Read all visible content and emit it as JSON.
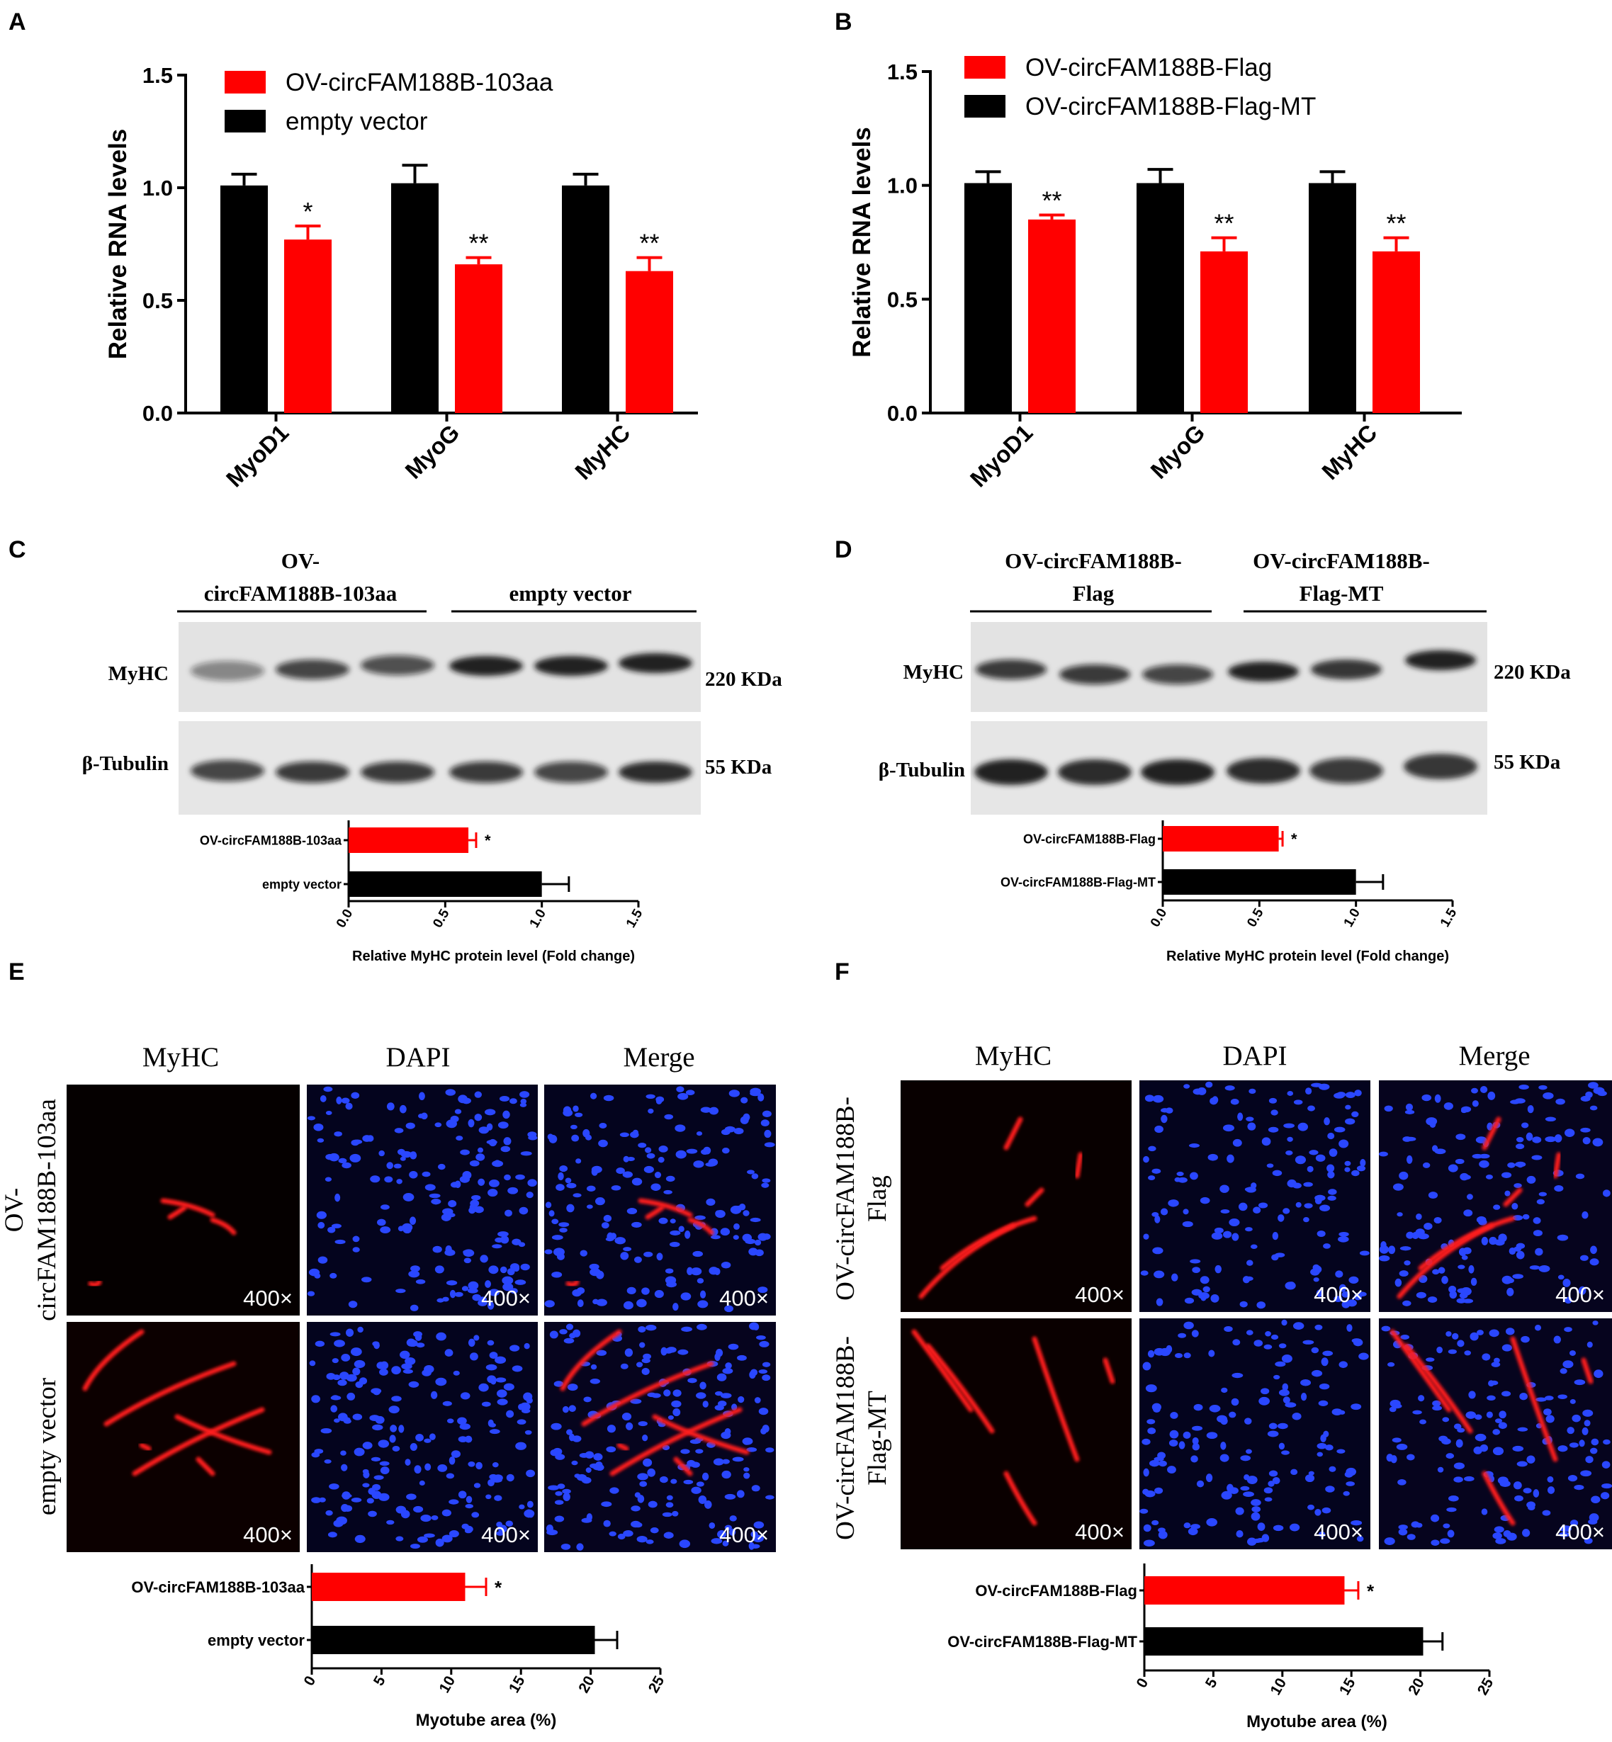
{
  "colors": {
    "red": "#ff0000",
    "black": "#000000",
    "dapi_blue": "#1f3cff"
  },
  "panel_letters": [
    "A",
    "B",
    "C",
    "D",
    "E",
    "F"
  ],
  "chart_data": [
    {
      "id": "A",
      "type": "bar",
      "categories": [
        "MyoD1",
        "MyoG",
        "MyHC"
      ],
      "series": [
        {
          "name": "empty vector",
          "color": "#000000",
          "values": [
            1.01,
            1.02,
            1.01
          ],
          "errors": [
            0.05,
            0.08,
            0.05
          ]
        },
        {
          "name": "OV-circFAM188B-103aa",
          "color": "#ff0000",
          "values": [
            0.77,
            0.66,
            0.63
          ],
          "errors": [
            0.06,
            0.03,
            0.06
          ]
        }
      ],
      "legend_order": [
        1,
        0
      ],
      "significance": [
        "*",
        "**",
        "**"
      ],
      "ylabel": "Relative RNA levels",
      "ylim": [
        0,
        1.5
      ],
      "yticks": [
        "0.0",
        "0.5",
        "1.0",
        "1.5"
      ],
      "legend": "top-left",
      "grid": false
    },
    {
      "id": "B",
      "type": "bar",
      "categories": [
        "MyoD1",
        "MyoG",
        "MyHC"
      ],
      "series": [
        {
          "name": "OV-circFAM188B-Flag-MT",
          "color": "#000000",
          "values": [
            1.01,
            1.01,
            1.01
          ],
          "errors": [
            0.05,
            0.06,
            0.05
          ]
        },
        {
          "name": "OV-circFAM188B-Flag",
          "color": "#ff0000",
          "values": [
            0.85,
            0.71,
            0.71
          ],
          "errors": [
            0.02,
            0.06,
            0.06
          ]
        }
      ],
      "legend_order": [
        1,
        0
      ],
      "significance": [
        "**",
        "**",
        "**"
      ],
      "ylabel": "Relative RNA levels",
      "ylim": [
        0,
        1.5
      ],
      "yticks": [
        "0.0",
        "0.5",
        "1.0",
        "1.5"
      ],
      "legend": "top-left",
      "grid": false
    },
    {
      "id": "C",
      "type": "bar",
      "orientation": "horizontal",
      "categories": [
        "OV-circFAM188B-103aa",
        "empty vector"
      ],
      "values": [
        0.62,
        1.0
      ],
      "errors": [
        0.04,
        0.14
      ],
      "colors": [
        "#ff0000",
        "#000000"
      ],
      "significance": [
        "*",
        ""
      ],
      "xlabel": "Relative MyHC protein level (Fold change)",
      "xlim": [
        0,
        1.5
      ],
      "xticks": [
        "0.0",
        "0.5",
        "1.0",
        "1.5"
      ]
    },
    {
      "id": "D",
      "type": "bar",
      "orientation": "horizontal",
      "categories": [
        "OV-circFAM188B-Flag",
        "OV-circFAM188B-Flag-MT"
      ],
      "values": [
        0.6,
        1.0
      ],
      "errors": [
        0.02,
        0.14
      ],
      "colors": [
        "#ff0000",
        "#000000"
      ],
      "significance": [
        "*",
        ""
      ],
      "xlabel": "Relative MyHC protein level (Fold change)",
      "xlim": [
        0,
        1.5
      ],
      "xticks": [
        "0.0",
        "0.5",
        "1.0",
        "1.5"
      ]
    },
    {
      "id": "E",
      "type": "bar",
      "orientation": "horizontal",
      "categories": [
        "OV-circFAM188B-103aa",
        "empty vector"
      ],
      "values": [
        11.0,
        20.3
      ],
      "errors": [
        1.5,
        1.6
      ],
      "colors": [
        "#ff0000",
        "#000000"
      ],
      "significance": [
        "*",
        ""
      ],
      "xlabel": "Myotube area (%)",
      "xlim": [
        0,
        25
      ],
      "xticks": [
        "0",
        "5",
        "10",
        "15",
        "20",
        "25"
      ]
    },
    {
      "id": "F",
      "type": "bar",
      "orientation": "horizontal",
      "categories": [
        "OV-circFAM188B-Flag",
        "OV-circFAM188B-Flag-MT"
      ],
      "values": [
        14.5,
        20.2
      ],
      "errors": [
        1.0,
        1.4
      ],
      "colors": [
        "#ff0000",
        "#000000"
      ],
      "significance": [
        "*",
        ""
      ],
      "xlabel": "Myotube area (%)",
      "xlim": [
        0,
        25
      ],
      "xticks": [
        "0",
        "5",
        "10",
        "15",
        "20",
        "25"
      ]
    }
  ],
  "western": {
    "C": {
      "groups": [
        [
          "OV-",
          "circFAM188B-103aa"
        ],
        [
          "empty vector"
        ]
      ],
      "rows": [
        "MyHC",
        "β-Tubulin"
      ],
      "sizes": [
        "220 KDa",
        "55 KDa"
      ]
    },
    "D": {
      "groups": [
        [
          "OV-circFAM188B-",
          "Flag"
        ],
        [
          "OV-circFAM188B-",
          "Flag-MT"
        ]
      ],
      "rows": [
        "MyHC",
        "β-Tubulin"
      ],
      "sizes": [
        "220 KDa",
        "55 KDa"
      ]
    }
  },
  "if_panels": {
    "E": {
      "columns": [
        "MyHC",
        "DAPI",
        "Merge"
      ],
      "row_labels": [
        [
          "OV-",
          "circFAM188B-103aa"
        ],
        [
          "empty vector"
        ]
      ],
      "magnification": "400×"
    },
    "F": {
      "columns": [
        "MyHC",
        "DAPI",
        "Merge"
      ],
      "row_labels": [
        [
          "OV-circFAM188B-",
          "Flag"
        ],
        [
          "OV-circFAM188B-",
          "Flag-MT"
        ]
      ],
      "magnification": "400×"
    }
  }
}
